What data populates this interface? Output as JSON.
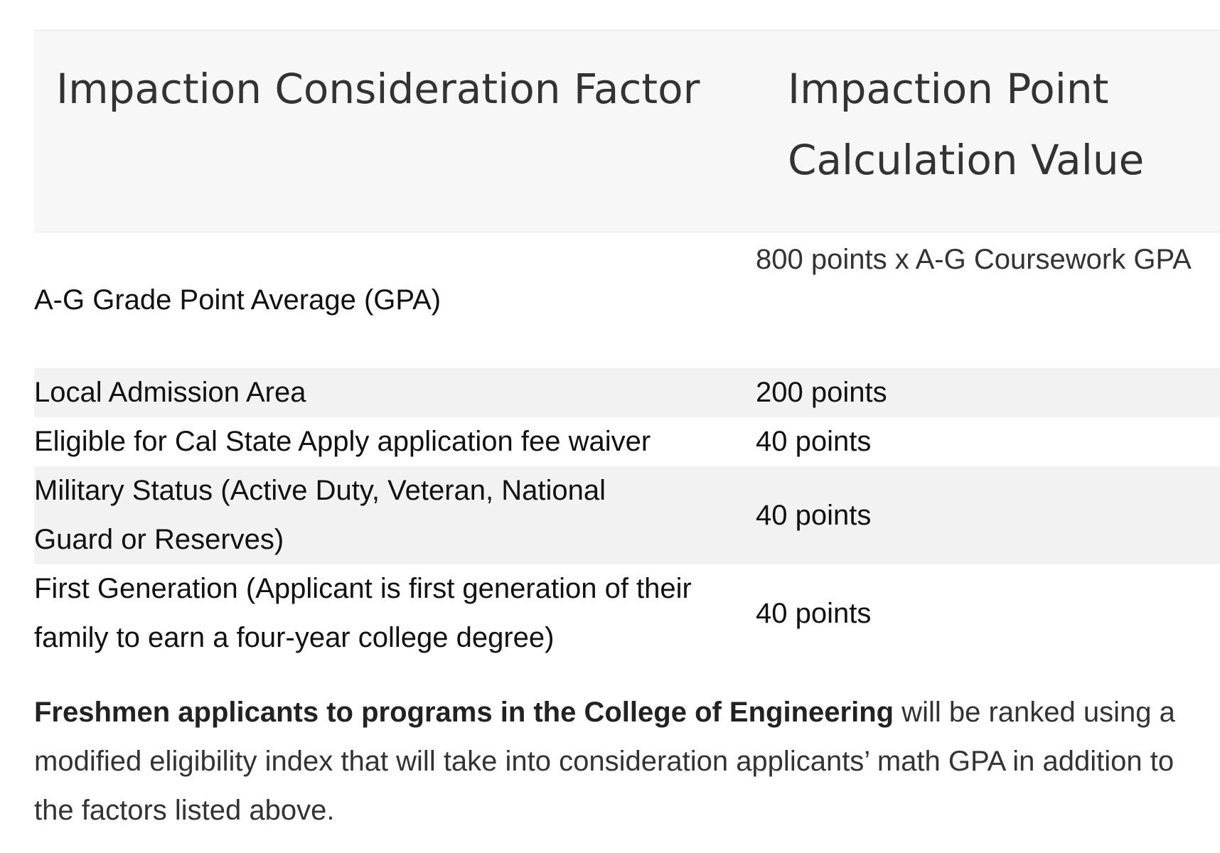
{
  "table": {
    "headers": [
      "Impaction Consideration Factor",
      "Impaction Point Calculation Value"
    ],
    "rows": [
      {
        "factor": "A-G Grade Point Average (GPA)",
        "value": "800 points x A-G Coursework GPA"
      },
      {
        "factor": "Local Admission Area",
        "value": "200 points"
      },
      {
        "factor": "Eligible for Cal State Apply application fee waiver",
        "value": "40 points"
      },
      {
        "factor": "Military Status (Active Duty, Veteran, National Guard or Reserves)",
        "value": "40 points"
      },
      {
        "factor": "First Generation (Applicant is first generation of their family to earn a four-year college degree)",
        "value": "40 points"
      }
    ]
  },
  "note": {
    "bold_text": "Freshmen applicants to programs in the College of Engineering",
    "text": " will be ranked using a modified eligibility index that will take into consideration applicants’ math GPA in addition to the factors listed above."
  }
}
